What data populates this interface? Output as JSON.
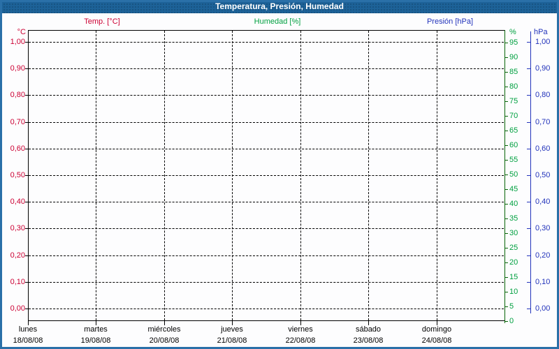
{
  "window": {
    "title": "Temperatura, Presión, Humedad"
  },
  "legend": {
    "temp_label": "Temp. [°C]",
    "humidity_label": "Humedad [%]",
    "pressure_label": "Presión [hPa]"
  },
  "colors": {
    "titlebar_bg": "#1d6298",
    "frame_border": "#2a70a8",
    "temp_red": "#cc0033",
    "humidity_green": "#00a040",
    "humidity_axis_green": "#066406",
    "pressure_blue": "#2233bb",
    "grid_black": "#000000"
  },
  "chart_data": {
    "type": "line",
    "title": "Temperatura, Presión, Humedad",
    "note": "plot area is empty - no data series are drawn for this week",
    "grid": "dashed",
    "legend_position": "top",
    "series": [
      {
        "name": "Temp. [°C]",
        "unit": "°C",
        "axis": "left",
        "color": "#cc0033",
        "values": []
      },
      {
        "name": "Humedad [%]",
        "unit": "%",
        "axis": "right_inner",
        "color": "#00a040",
        "values": []
      },
      {
        "name": "Presión [hPa]",
        "unit": "hPa",
        "axis": "right_outer",
        "color": "#2233bb",
        "values": []
      }
    ],
    "x_axis": {
      "days": [
        "lunes",
        "martes",
        "miércoles",
        "jueves",
        "viernes",
        "sábado",
        "domingo"
      ],
      "dates": [
        "18/08/08",
        "19/08/08",
        "20/08/08",
        "21/08/08",
        "22/08/08",
        "23/08/08",
        "24/08/08"
      ]
    },
    "left_axis": {
      "unit": "°C",
      "range": [
        0,
        1
      ],
      "tick_labels": [
        "1,00",
        "0,90",
        "0,80",
        "0,70",
        "0,60",
        "0,50",
        "0,40",
        "0,30",
        "0,20",
        "0,10",
        "0,00"
      ]
    },
    "right_inner_axis": {
      "unit": "%",
      "range": [
        0,
        100
      ],
      "tick_labels": [
        "95",
        "90",
        "85",
        "80",
        "75",
        "70",
        "65",
        "60",
        "55",
        "50",
        "45",
        "40",
        "35",
        "30",
        "25",
        "20",
        "15",
        "10",
        "5",
        "0"
      ]
    },
    "right_outer_axis": {
      "unit": "hPa",
      "range": [
        0,
        1
      ],
      "tick_labels": [
        "1,00",
        "0,90",
        "0,80",
        "0,70",
        "0,60",
        "0,50",
        "0,40",
        "0,30",
        "0,20",
        "0,10",
        "0,00"
      ]
    }
  }
}
